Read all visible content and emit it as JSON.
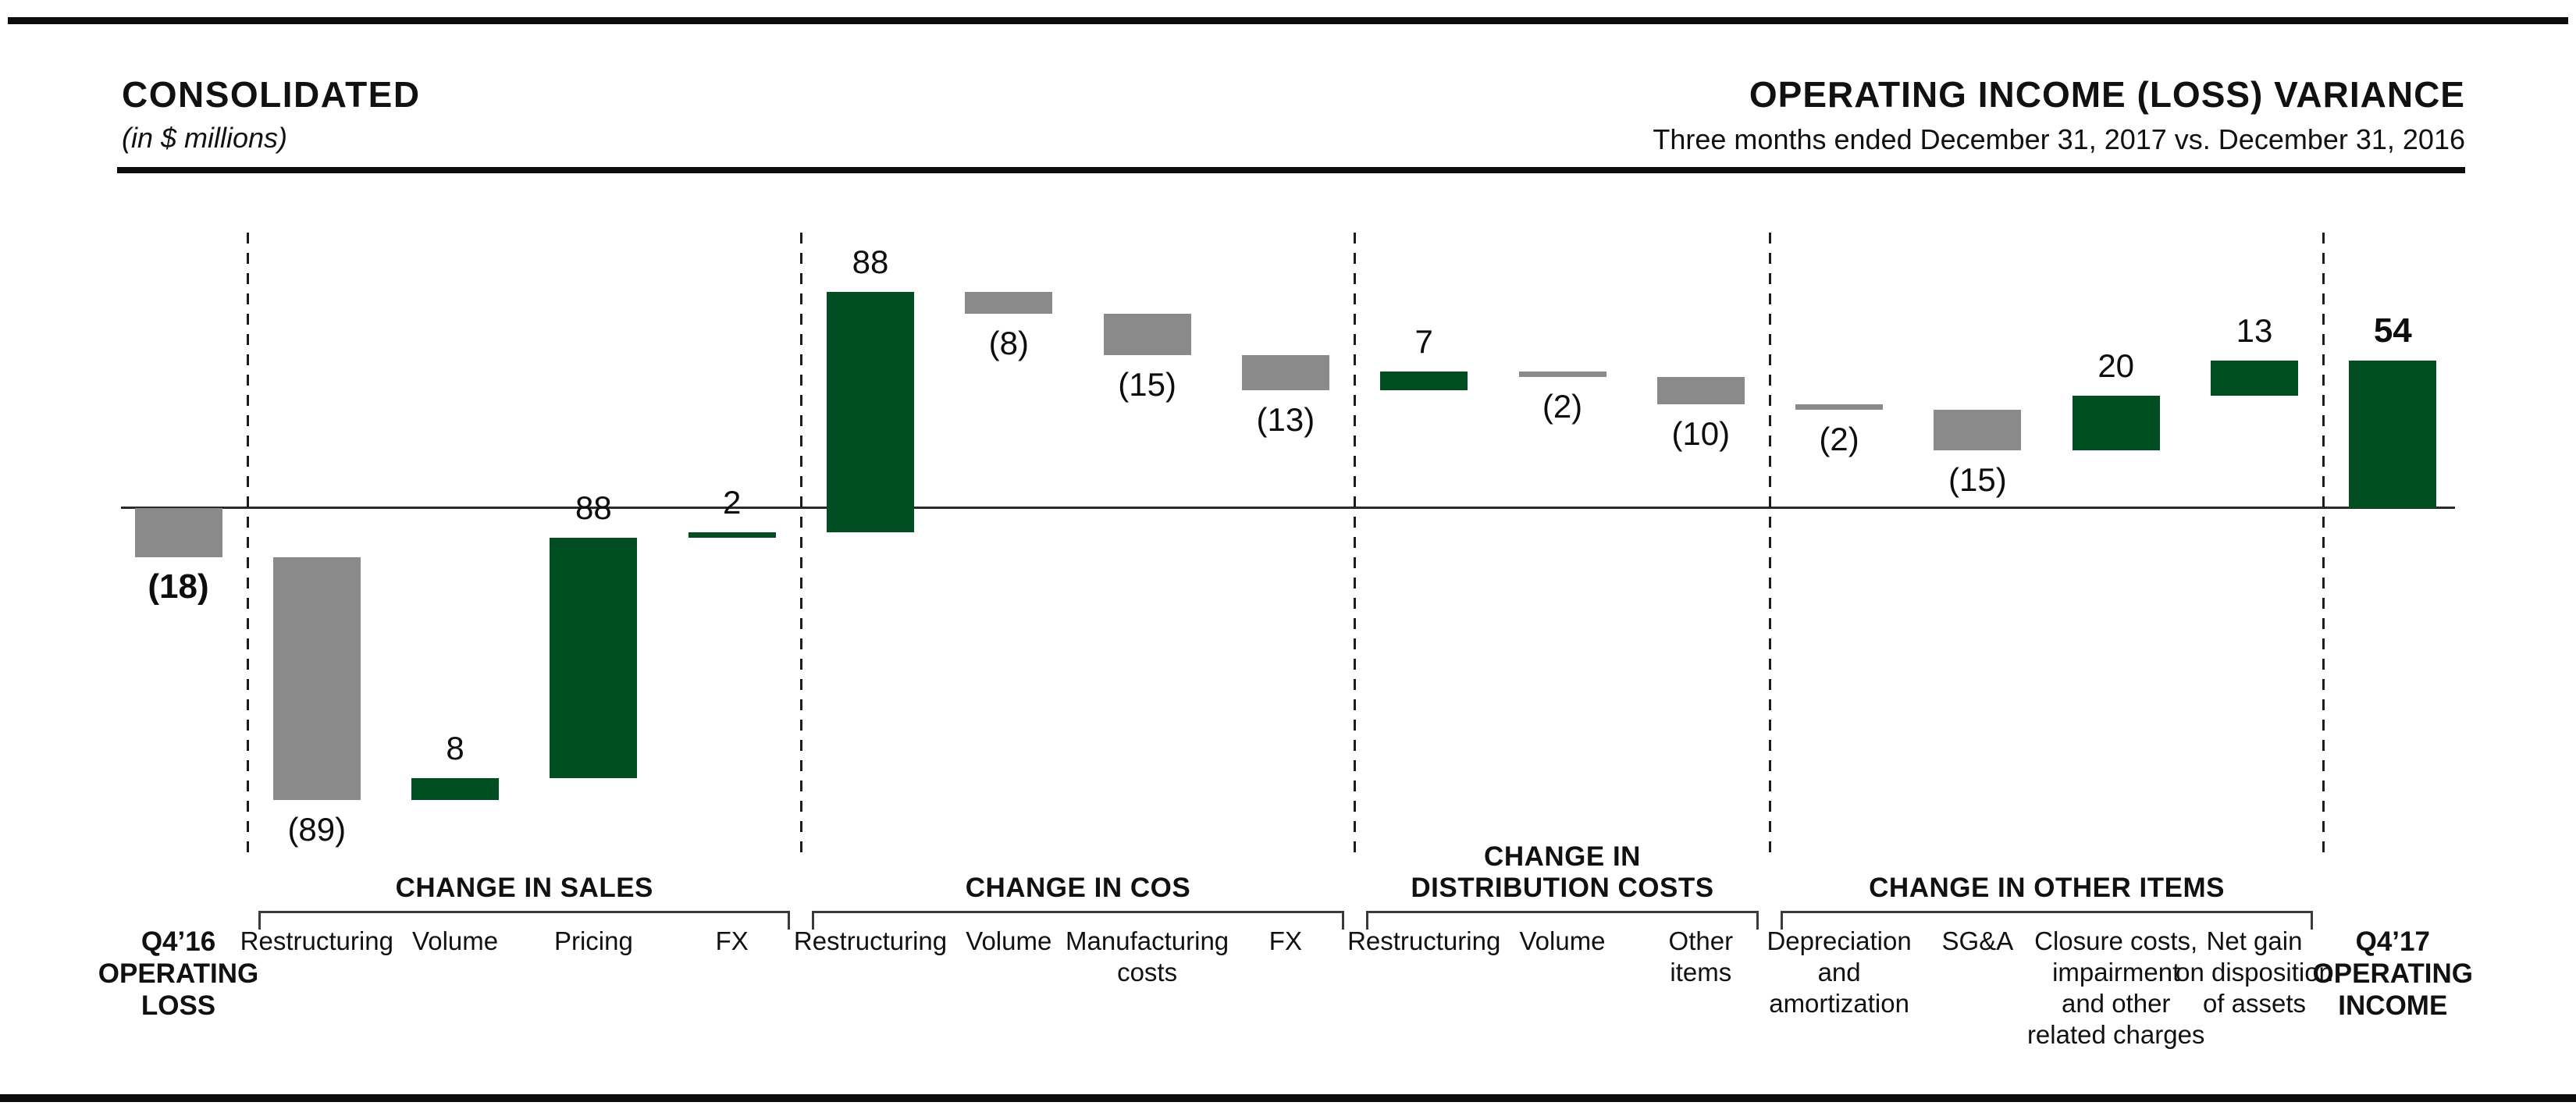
{
  "header": {
    "title_left": "CONSOLIDATED",
    "subtitle_left": "(in $ millions)",
    "title_right": "OPERATING INCOME (LOSS) VARIANCE",
    "subtitle_right": "Three months ended December 31, 2017 vs. December 31, 2016"
  },
  "colors": {
    "positive_bar": "#004e22",
    "negative_bar": "#8a8a8a",
    "axis_line": "#2a2a2a",
    "text": "#111111"
  },
  "chart_data": {
    "type": "bar",
    "subtype": "waterfall",
    "unit": "$ millions",
    "grid": "off",
    "legend": "none",
    "baseline": 0,
    "start": {
      "label_lines": [
        "Q4’16",
        "OPERATING",
        "LOSS"
      ],
      "value": -18,
      "display": "(18)"
    },
    "end": {
      "label_lines": [
        "Q4’17",
        "OPERATING",
        "INCOME"
      ],
      "value": 54,
      "display": "54"
    },
    "groups": [
      {
        "label_lines": [
          "CHANGE IN SALES"
        ],
        "items": [
          {
            "label_lines": [
              "Restructuring"
            ],
            "value": -89,
            "display": "(89)"
          },
          {
            "label_lines": [
              "Volume"
            ],
            "value": 8,
            "display": "8"
          },
          {
            "label_lines": [
              "Pricing"
            ],
            "value": 88,
            "display": "88"
          },
          {
            "label_lines": [
              "FX"
            ],
            "value": 2,
            "display": "2"
          }
        ]
      },
      {
        "label_lines": [
          "CHANGE IN COS"
        ],
        "items": [
          {
            "label_lines": [
              "Restructuring"
            ],
            "value": 88,
            "display": "88"
          },
          {
            "label_lines": [
              "Volume"
            ],
            "value": -8,
            "display": "(8)"
          },
          {
            "label_lines": [
              "Manufacturing",
              "costs"
            ],
            "value": -15,
            "display": "(15)"
          },
          {
            "label_lines": [
              "FX"
            ],
            "value": -13,
            "display": "(13)"
          }
        ]
      },
      {
        "label_lines": [
          "CHANGE IN",
          "DISTRIBUTION COSTS"
        ],
        "items": [
          {
            "label_lines": [
              "Restructuring"
            ],
            "value": 7,
            "display": "7"
          },
          {
            "label_lines": [
              "Volume"
            ],
            "value": -2,
            "display": "(2)"
          },
          {
            "label_lines": [
              "Other",
              "items"
            ],
            "value": -10,
            "display": "(10)"
          }
        ]
      },
      {
        "label_lines": [
          "CHANGE IN OTHER ITEMS"
        ],
        "items": [
          {
            "label_lines": [
              "Depreciation",
              "and",
              "amortization"
            ],
            "value": -2,
            "display": "(2)"
          },
          {
            "label_lines": [
              "SG&A"
            ],
            "value": -15,
            "display": "(15)"
          },
          {
            "label_lines": [
              "Closure costs,",
              "impairment",
              "and other",
              "related charges"
            ],
            "value": 20,
            "display": "20"
          },
          {
            "label_lines": [
              "Net gain",
              "on disposition",
              "of assets"
            ],
            "value": 13,
            "display": "13"
          }
        ]
      }
    ]
  }
}
